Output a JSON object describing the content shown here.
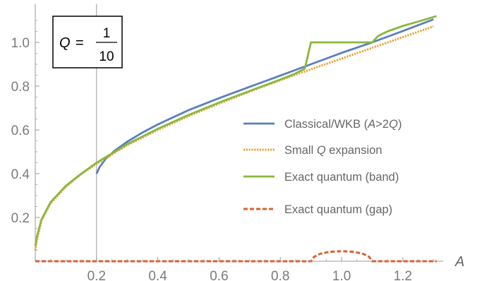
{
  "chart_data": {
    "type": "line",
    "xlabel": "A",
    "ylabel": "",
    "xlim": [
      0,
      1.32
    ],
    "ylim": [
      -0.02,
      1.15
    ],
    "x_ticks": [
      "0.2",
      "0.4",
      "0.6",
      "0.8",
      "1.0",
      "1.2"
    ],
    "y_ticks": [
      "0.2",
      "0.4",
      "0.6",
      "0.8",
      "1.0"
    ],
    "annotation": {
      "variable": "Q",
      "equals": "=",
      "numerator": "1",
      "denominator": "10"
    },
    "vertical_line_x": 0.2,
    "legend_position": "right",
    "series": [
      {
        "name": "Classical/WKB (A>2Q)",
        "name_parts": [
          "Classical/WKB (",
          "A",
          ">2",
          "Q",
          ")"
        ],
        "color": "#5b7fbf",
        "style": "solid",
        "x": [
          0.2,
          0.21,
          0.23,
          0.26,
          0.3,
          0.35,
          0.4,
          0.5,
          0.6,
          0.7,
          0.8,
          0.9,
          1.0,
          1.1,
          1.2,
          1.3
        ],
        "y": [
          0.4,
          0.43,
          0.468,
          0.506,
          0.546,
          0.588,
          0.625,
          0.69,
          0.745,
          0.797,
          0.848,
          0.9,
          0.952,
          1.0,
          1.052,
          1.105
        ]
      },
      {
        "name": "Small Q expansion",
        "name_parts": [
          "Small ",
          "Q",
          " expansion"
        ],
        "color": "#e8a13a",
        "style": "dotted",
        "x": [
          0,
          0.005,
          0.02,
          0.05,
          0.1,
          0.15,
          0.2,
          0.3,
          0.4,
          0.5,
          0.6,
          0.7,
          0.8,
          0.9,
          1.0,
          1.1,
          1.2,
          1.3
        ],
        "y": [
          0.05,
          0.095,
          0.185,
          0.265,
          0.34,
          0.398,
          0.445,
          0.53,
          0.6,
          0.663,
          0.72,
          0.775,
          0.827,
          0.877,
          0.926,
          0.975,
          1.024,
          1.073
        ]
      },
      {
        "name": "Exact quantum (band)",
        "name_parts": [
          "Exact quantum (band)"
        ],
        "color": "#8ab83a",
        "style": "solid",
        "x": [
          0,
          0.005,
          0.02,
          0.05,
          0.1,
          0.15,
          0.2,
          0.3,
          0.4,
          0.5,
          0.6,
          0.7,
          0.8,
          0.85,
          0.88,
          0.9,
          1.1,
          1.12,
          1.15,
          1.2,
          1.25,
          1.31
        ],
        "y": [
          0.07,
          0.11,
          0.19,
          0.27,
          0.345,
          0.4,
          0.45,
          0.535,
          0.605,
          0.668,
          0.725,
          0.778,
          0.83,
          0.858,
          0.88,
          1.0,
          1.0,
          1.03,
          1.05,
          1.075,
          1.095,
          1.12
        ]
      },
      {
        "name": "Exact quantum (gap)",
        "name_parts": [
          "Exact quantum (gap)"
        ],
        "color": "#dd5f30",
        "style": "dashed",
        "x": [
          0,
          0.9,
          0.91,
          0.93,
          0.96,
          1.0,
          1.04,
          1.07,
          1.09,
          1.1,
          1.31
        ],
        "y": [
          0,
          0,
          0.02,
          0.034,
          0.043,
          0.046,
          0.043,
          0.034,
          0.02,
          0,
          0
        ]
      }
    ]
  }
}
